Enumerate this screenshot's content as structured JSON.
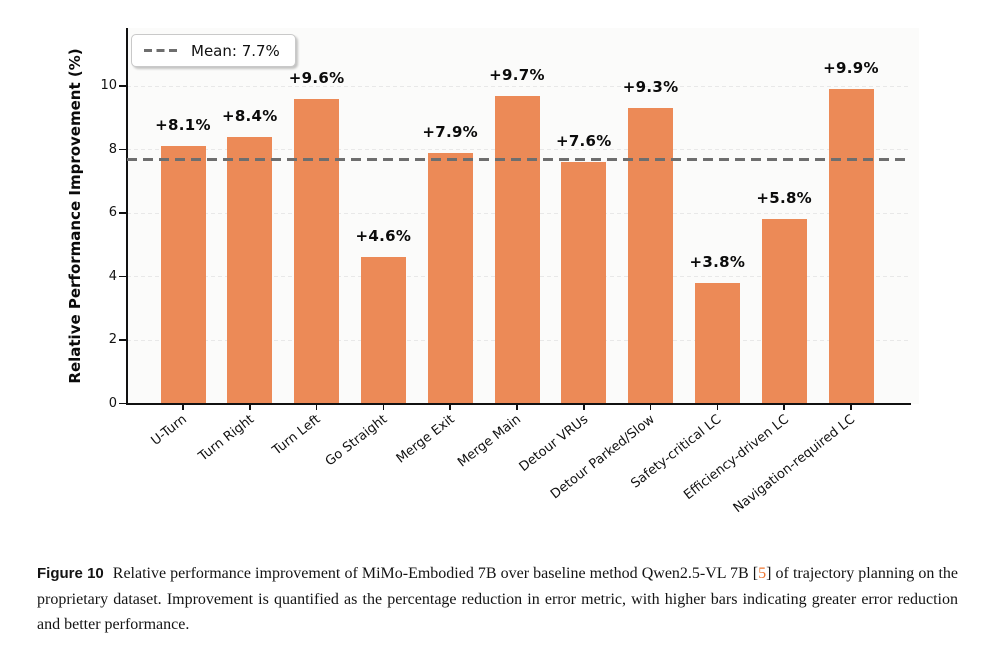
{
  "chart_data": {
    "type": "bar",
    "title": "",
    "xlabel": "",
    "ylabel": "Relative Performance Improvement (%)",
    "categories": [
      "U-Turn",
      "Turn Right",
      "Turn Left",
      "Go Straight",
      "Merge Exit",
      "Merge Main",
      "Detour VRUs",
      "Detour Parked/Slow",
      "Safety-critical LC",
      "Efficiency-driven LC",
      "Navigation-required LC"
    ],
    "values": [
      8.1,
      8.4,
      9.6,
      4.6,
      7.9,
      9.7,
      7.6,
      9.3,
      3.8,
      5.8,
      9.9
    ],
    "bar_labels": [
      "+8.1%",
      "+8.4%",
      "+9.6%",
      "+4.6%",
      "+7.9%",
      "+9.7%",
      "+7.6%",
      "+9.3%",
      "+3.8%",
      "+5.8%",
      "+9.9%"
    ],
    "yticks": [
      0,
      2,
      4,
      6,
      8,
      10
    ],
    "ylim": [
      0,
      11.83
    ],
    "mean": 7.7,
    "legend_label": "Mean: 7.7%",
    "legend_position": "upper left",
    "grid": true,
    "colors": {
      "bar": "#EC8A57",
      "mean_line": "#6E6E6E",
      "grid_line": "#E8E8E8",
      "axis": "#111111"
    }
  },
  "caption": {
    "label": "Figure 10",
    "text_before_cite": "Relative performance improvement of MiMo-Embodied 7B over baseline method Qwen2.5-VL 7B [",
    "cite": "5",
    "text_after_cite": "] of trajectory planning on the proprietary dataset. Improvement is quantified as the percentage reduction in error metric, with higher bars indicating greater error reduction and better performance.",
    "cite_color": "#EE7733"
  }
}
